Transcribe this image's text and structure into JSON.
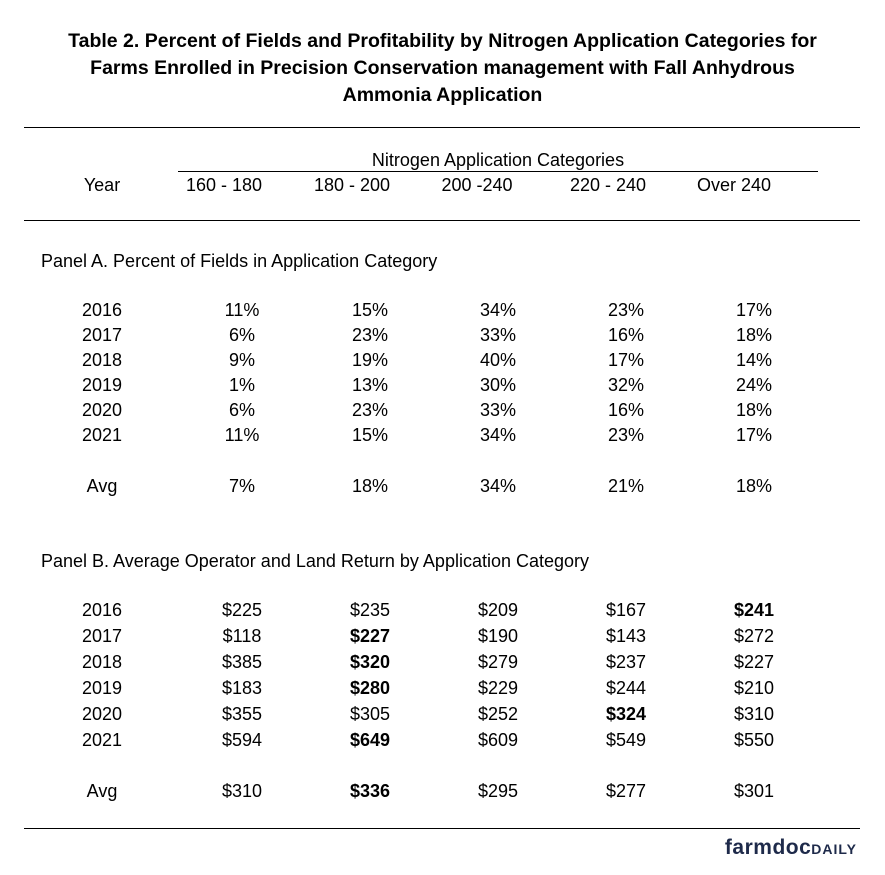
{
  "title": {
    "line1": "Table 2.  Percent of Fields and Profitability by Nitrogen Application Categories for",
    "line2": "Farms Enrolled in Precision Conservation management with Fall Anhydrous",
    "line3": "Ammonia Application"
  },
  "header": {
    "group_label": "Nitrogen Application Categories",
    "year_label": "Year",
    "categories": [
      "160 - 180",
      "180 - 200",
      "200 -240",
      "220 - 240",
      "Over 240"
    ]
  },
  "panel_a": {
    "title": "Panel A.  Percent of Fields in Application Category",
    "rows": [
      {
        "year": "2016",
        "values": [
          "11%",
          "15%",
          "34%",
          "23%",
          "17%"
        ]
      },
      {
        "year": "2017",
        "values": [
          "6%",
          "23%",
          "33%",
          "16%",
          "18%"
        ]
      },
      {
        "year": "2018",
        "values": [
          "9%",
          "19%",
          "40%",
          "17%",
          "14%"
        ]
      },
      {
        "year": "2019",
        "values": [
          "1%",
          "13%",
          "30%",
          "32%",
          "24%"
        ]
      },
      {
        "year": "2020",
        "values": [
          "6%",
          "23%",
          "33%",
          "16%",
          "18%"
        ]
      },
      {
        "year": "2021",
        "values": [
          "11%",
          "15%",
          "34%",
          "23%",
          "17%"
        ]
      }
    ],
    "avg": {
      "year": "Avg",
      "values": [
        "7%",
        "18%",
        "34%",
        "21%",
        "18%"
      ]
    }
  },
  "panel_b": {
    "title": "Panel B. Average Operator and Land Return by Application Category",
    "rows": [
      {
        "year": "2016",
        "values": [
          "$225",
          "$235",
          "$209",
          "$167",
          "$241"
        ],
        "bold_index": 4
      },
      {
        "year": "2017",
        "values": [
          "$118",
          "$227",
          "$190",
          "$143",
          "$272"
        ],
        "bold_index": 1
      },
      {
        "year": "2018",
        "values": [
          "$385",
          "$320",
          "$279",
          "$237",
          "$227"
        ],
        "bold_index": 1
      },
      {
        "year": "2019",
        "values": [
          "$183",
          "$280",
          "$229",
          "$244",
          "$210"
        ],
        "bold_index": 1
      },
      {
        "year": "2020",
        "values": [
          "$355",
          "$305",
          "$252",
          "$324",
          "$310"
        ],
        "bold_index": 3
      },
      {
        "year": "2021",
        "values": [
          "$594",
          "$649",
          "$609",
          "$549",
          "$550"
        ],
        "bold_index": 1
      }
    ],
    "avg": {
      "year": "Avg",
      "values": [
        "$310",
        "$336",
        "$295",
        "$277",
        "$301"
      ],
      "bold_index": 1
    }
  },
  "logo": {
    "main": "farmdoc",
    "suffix": "DAILY"
  }
}
